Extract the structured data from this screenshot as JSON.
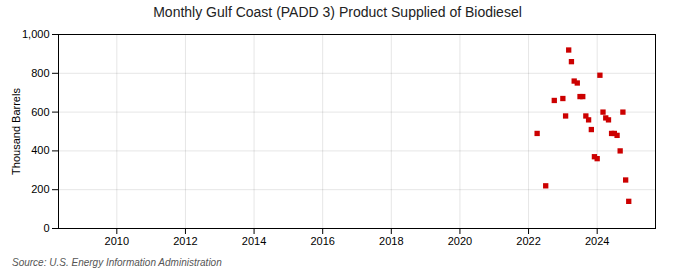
{
  "chart_data": {
    "type": "scatter",
    "title": "Monthly Gulf Coast (PADD 3) Product Supplied of Biodiesel",
    "ylabel": "Thousand Barrels",
    "source": "Source: U.S. Energy Information Administration",
    "x": [
      2022.25,
      2022.5,
      2022.75,
      2023.0,
      2023.08,
      2023.17,
      2023.25,
      2023.33,
      2023.42,
      2023.5,
      2023.58,
      2023.67,
      2023.75,
      2023.83,
      2023.92,
      2024.0,
      2024.08,
      2024.17,
      2024.25,
      2024.33,
      2024.42,
      2024.5,
      2024.58,
      2024.67,
      2024.75,
      2024.83,
      2024.92
    ],
    "values": [
      490,
      220,
      660,
      670,
      580,
      920,
      860,
      760,
      750,
      680,
      680,
      580,
      560,
      510,
      370,
      360,
      790,
      600,
      570,
      560,
      490,
      490,
      480,
      400,
      600,
      250,
      140
    ],
    "color": "#cc0000",
    "marker": "square",
    "xlim": [
      2008.3,
      2025.7
    ],
    "xticks": [
      2010,
      2012,
      2014,
      2016,
      2018,
      2020,
      2022,
      2024
    ],
    "ylim": [
      0,
      1000
    ],
    "yticks": [
      0,
      200,
      400,
      600,
      800,
      {
        "value": 1000,
        "label": "1,000"
      }
    ],
    "grid": true
  }
}
